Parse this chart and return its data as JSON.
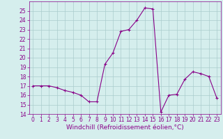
{
  "x": [
    0,
    1,
    2,
    3,
    4,
    5,
    6,
    7,
    8,
    9,
    10,
    11,
    12,
    13,
    14,
    15,
    16,
    17,
    18,
    19,
    20,
    21,
    22,
    23
  ],
  "y": [
    17,
    17,
    17,
    16.8,
    16.5,
    16.3,
    16.0,
    15.3,
    15.3,
    19.3,
    20.5,
    22.8,
    23.0,
    24.0,
    25.3,
    25.2,
    14.2,
    16.0,
    16.1,
    17.7,
    18.5,
    18.3,
    18.0,
    15.7
  ],
  "line_color": "#880088",
  "marker": "+",
  "marker_size": 3,
  "bg_color": "#d5eeed",
  "grid_color": "#aacccc",
  "xlabel": "Windchill (Refroidissement éolien,°C)",
  "xlim": [
    -0.5,
    23.5
  ],
  "ylim": [
    14,
    26
  ],
  "yticks": [
    14,
    15,
    16,
    17,
    18,
    19,
    20,
    21,
    22,
    23,
    24,
    25
  ],
  "xticks": [
    0,
    1,
    2,
    3,
    4,
    5,
    6,
    7,
    8,
    9,
    10,
    11,
    12,
    13,
    14,
    15,
    16,
    17,
    18,
    19,
    20,
    21,
    22,
    23
  ],
  "tick_label_fontsize": 5.5,
  "xlabel_fontsize": 6.5,
  "tick_color": "#880088",
  "label_color": "#880088",
  "linewidth": 0.8,
  "markeredgewidth": 0.8
}
